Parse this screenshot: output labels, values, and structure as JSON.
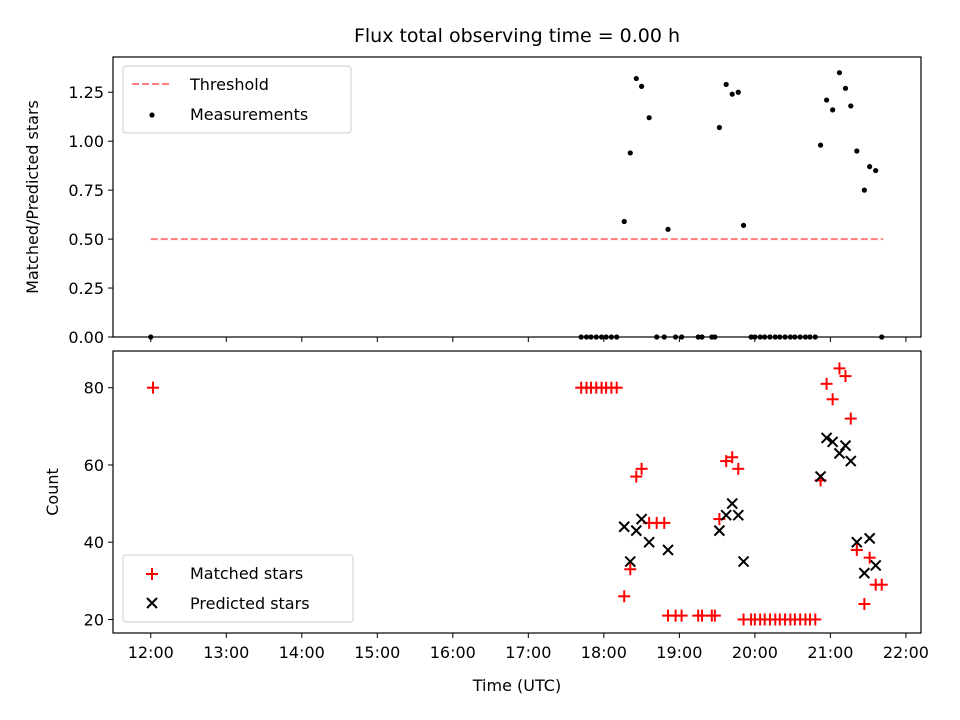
{
  "chart_data": [
    {
      "type": "scatter",
      "title": "Flux total observing time = 0.00 h",
      "xlabel": "",
      "ylabel": "Matched/Predicted stars",
      "xlim": [
        11.5,
        22.2
      ],
      "ylim": [
        0,
        1.43
      ],
      "yticks": [
        0.0,
        0.25,
        0.5,
        0.75,
        1.0,
        1.25
      ],
      "ytick_labels": [
        "0.00",
        "0.25",
        "0.50",
        "0.75",
        "1.00",
        "1.25"
      ],
      "xticks": [
        12,
        13,
        14,
        15,
        16,
        17,
        18,
        19,
        20,
        21,
        22
      ],
      "legend_position": "upper-left",
      "series": [
        {
          "name": "Threshold",
          "kind": "line",
          "style": "dashed",
          "color": "#ff7f7f",
          "x": [
            12.0,
            21.7
          ],
          "y": [
            0.5,
            0.5
          ]
        },
        {
          "name": "Measurements",
          "kind": "scatter",
          "marker": "dot",
          "color": "#000000",
          "x": [
            12.0,
            17.7,
            17.77,
            17.83,
            17.9,
            17.97,
            18.03,
            18.1,
            18.17,
            18.27,
            18.35,
            18.43,
            18.5,
            18.6,
            18.7,
            18.8,
            18.85,
            18.95,
            19.03,
            19.25,
            19.3,
            19.43,
            19.47,
            19.53,
            19.62,
            19.7,
            19.78,
            19.85,
            19.95,
            20.0,
            20.07,
            20.13,
            20.2,
            20.27,
            20.33,
            20.4,
            20.47,
            20.53,
            20.6,
            20.67,
            20.73,
            20.8,
            20.87,
            20.95,
            21.03,
            21.12,
            21.2,
            21.27,
            21.35,
            21.45,
            21.52,
            21.6,
            21.68
          ],
          "y": [
            0.0,
            0.0,
            0.0,
            0.0,
            0.0,
            0.0,
            0.0,
            0.0,
            0.0,
            0.59,
            0.94,
            1.32,
            1.28,
            1.12,
            0.0,
            0.0,
            0.55,
            0.0,
            0.0,
            0.0,
            0.0,
            0.0,
            0.0,
            1.07,
            1.29,
            1.24,
            1.25,
            0.57,
            0.0,
            0.0,
            0.0,
            0.0,
            0.0,
            0.0,
            0.0,
            0.0,
            0.0,
            0.0,
            0.0,
            0.0,
            0.0,
            0.0,
            0.98,
            1.21,
            1.16,
            1.35,
            1.27,
            1.18,
            0.95,
            0.75,
            0.87,
            0.85,
            0.0
          ]
        }
      ]
    },
    {
      "type": "scatter",
      "title": "",
      "xlabel": "Time (UTC)",
      "ylabel": "Count",
      "xlim": [
        11.5,
        22.2
      ],
      "ylim": [
        16.5,
        89.5
      ],
      "yticks": [
        20,
        40,
        60,
        80
      ],
      "ytick_labels": [
        "20",
        "40",
        "60",
        "80"
      ],
      "xticks": [
        12,
        13,
        14,
        15,
        16,
        17,
        18,
        19,
        20,
        21,
        22
      ],
      "xtick_labels": [
        "12:00",
        "13:00",
        "14:00",
        "15:00",
        "16:00",
        "17:00",
        "18:00",
        "19:00",
        "20:00",
        "21:00",
        "22:00"
      ],
      "legend_position": "lower-left",
      "series": [
        {
          "name": "Matched stars",
          "kind": "scatter",
          "marker": "plus",
          "color": "#ff0000",
          "x": [
            12.03,
            17.7,
            17.77,
            17.83,
            17.9,
            17.97,
            18.03,
            18.1,
            18.17,
            18.27,
            18.35,
            18.43,
            18.5,
            18.6,
            18.7,
            18.8,
            18.85,
            18.95,
            19.03,
            19.25,
            19.3,
            19.43,
            19.47,
            19.53,
            19.62,
            19.7,
            19.78,
            19.85,
            19.95,
            20.0,
            20.07,
            20.13,
            20.2,
            20.27,
            20.33,
            20.4,
            20.47,
            20.53,
            20.6,
            20.67,
            20.73,
            20.8,
            20.87,
            20.95,
            21.03,
            21.12,
            21.2,
            21.27,
            21.35,
            21.45,
            21.52,
            21.6,
            21.68
          ],
          "y": [
            80,
            80,
            80,
            80,
            80,
            80,
            80,
            80,
            80,
            26,
            33,
            57,
            59,
            45,
            45,
            45,
            21,
            21,
            21,
            21,
            21,
            21,
            21,
            46,
            61,
            62,
            59,
            20,
            20,
            20,
            20,
            20,
            20,
            20,
            20,
            20,
            20,
            20,
            20,
            20,
            20,
            20,
            56,
            81,
            77,
            85,
            83,
            72,
            38,
            24,
            36,
            29,
            29
          ]
        },
        {
          "name": "Predicted stars",
          "kind": "scatter",
          "marker": "x",
          "color": "#000000",
          "x": [
            18.27,
            18.35,
            18.43,
            18.5,
            18.6,
            18.85,
            19.53,
            19.62,
            19.7,
            19.78,
            19.85,
            20.87,
            20.95,
            21.03,
            21.12,
            21.2,
            21.27,
            21.35,
            21.45,
            21.52,
            21.6
          ],
          "y": [
            44,
            35,
            43,
            46,
            40,
            38,
            43,
            47,
            50,
            47,
            35,
            57,
            67,
            66,
            63,
            65,
            61,
            40,
            32,
            41,
            34
          ]
        }
      ]
    }
  ]
}
